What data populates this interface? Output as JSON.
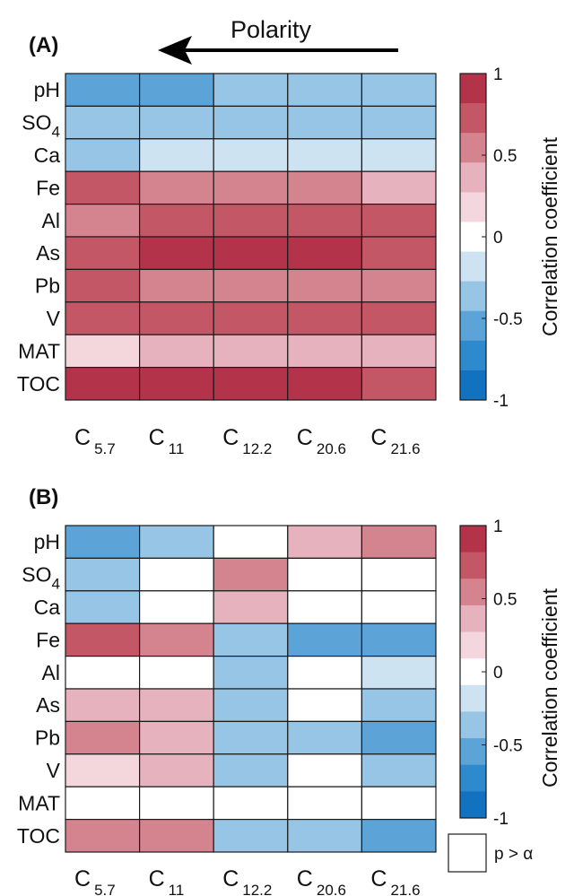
{
  "chart_data": [
    {
      "type": "heatmap",
      "panel_label": "(A)",
      "annotation": "Polarity",
      "rows": [
        "pH",
        "SO4",
        "Ca",
        "Fe",
        "Al",
        "As",
        "Pb",
        "V",
        "MAT",
        "TOC"
      ],
      "row_labels": [
        {
          "main": "pH",
          "sub": ""
        },
        {
          "main": "SO",
          "sub": "4"
        },
        {
          "main": "Ca",
          "sub": ""
        },
        {
          "main": "Fe",
          "sub": ""
        },
        {
          "main": "Al",
          "sub": ""
        },
        {
          "main": "As",
          "sub": ""
        },
        {
          "main": "Pb",
          "sub": ""
        },
        {
          "main": "V",
          "sub": ""
        },
        {
          "main": "MAT",
          "sub": ""
        },
        {
          "main": "TOC",
          "sub": ""
        }
      ],
      "columns": [
        {
          "main": "C",
          "sub": "5.7"
        },
        {
          "main": "C",
          "sub": "11"
        },
        {
          "main": "C",
          "sub": "12.2"
        },
        {
          "main": "C",
          "sub": "20.6"
        },
        {
          "main": "C",
          "sub": "21.6"
        }
      ],
      "values": [
        [
          -0.6,
          -0.6,
          -0.4,
          -0.4,
          -0.4
        ],
        [
          -0.4,
          -0.4,
          -0.4,
          -0.4,
          -0.4
        ],
        [
          -0.4,
          -0.2,
          -0.2,
          -0.2,
          -0.2
        ],
        [
          0.8,
          0.6,
          0.6,
          0.6,
          0.4
        ],
        [
          0.6,
          0.8,
          0.8,
          0.8,
          0.8
        ],
        [
          0.8,
          1.0,
          1.0,
          1.0,
          0.8
        ],
        [
          0.8,
          0.6,
          0.6,
          0.6,
          0.6
        ],
        [
          0.8,
          0.8,
          0.8,
          0.8,
          0.8
        ],
        [
          0.2,
          0.4,
          0.4,
          0.4,
          0.4
        ],
        [
          1.0,
          1.0,
          1.0,
          1.0,
          0.8
        ]
      ],
      "colorbar": {
        "label": "Correlation coefficient",
        "range": [
          -1,
          1
        ],
        "ticks": [
          "1",
          "0.5",
          "0",
          "-0.5",
          "-1"
        ]
      }
    },
    {
      "type": "heatmap",
      "panel_label": "(B)",
      "rows": [
        "pH",
        "SO4",
        "Ca",
        "Fe",
        "Al",
        "As",
        "Pb",
        "V",
        "MAT",
        "TOC"
      ],
      "row_labels": [
        {
          "main": "pH",
          "sub": ""
        },
        {
          "main": "SO",
          "sub": "4"
        },
        {
          "main": "Ca",
          "sub": ""
        },
        {
          "main": "Fe",
          "sub": ""
        },
        {
          "main": "Al",
          "sub": ""
        },
        {
          "main": "As",
          "sub": ""
        },
        {
          "main": "Pb",
          "sub": ""
        },
        {
          "main": "V",
          "sub": ""
        },
        {
          "main": "MAT",
          "sub": ""
        },
        {
          "main": "TOC",
          "sub": ""
        }
      ],
      "columns": [
        {
          "main": "C",
          "sub": "5.7"
        },
        {
          "main": "C",
          "sub": "11"
        },
        {
          "main": "C",
          "sub": "12.2"
        },
        {
          "main": "C",
          "sub": "20.6"
        },
        {
          "main": "C",
          "sub": "21.6"
        }
      ],
      "values": [
        [
          -0.6,
          -0.4,
          null,
          0.4,
          0.6
        ],
        [
          -0.4,
          null,
          0.6,
          null,
          null
        ],
        [
          -0.4,
          null,
          0.4,
          null,
          null
        ],
        [
          0.8,
          0.6,
          -0.4,
          -0.6,
          -0.6
        ],
        [
          null,
          null,
          -0.4,
          null,
          -0.2
        ],
        [
          0.4,
          0.4,
          -0.4,
          null,
          -0.4
        ],
        [
          0.6,
          0.4,
          -0.4,
          -0.4,
          -0.6
        ],
        [
          0.2,
          0.4,
          -0.4,
          null,
          -0.4
        ],
        [
          null,
          null,
          null,
          null,
          null
        ],
        [
          0.6,
          0.6,
          -0.4,
          -0.4,
          -0.6
        ]
      ],
      "colorbar": {
        "label": "Correlation coefficient",
        "range": [
          -1,
          1
        ],
        "ticks": [
          "1",
          "0.5",
          "0",
          "-0.5",
          "-1"
        ]
      },
      "legend": {
        "label": "p > α"
      }
    }
  ],
  "colormap": {
    "levels": [
      -1,
      -0.8,
      -0.6,
      -0.4,
      -0.2,
      0,
      0.2,
      0.4,
      0.6,
      0.8,
      1.0
    ],
    "colors": [
      "#1372bf",
      "#2e8acd",
      "#5ca3d8",
      "#96c5e6",
      "#cde3f2",
      "#ffffff",
      "#f4d6dd",
      "#e6b2bd",
      "#d4848f",
      "#c45765",
      "#b3344a"
    ]
  }
}
